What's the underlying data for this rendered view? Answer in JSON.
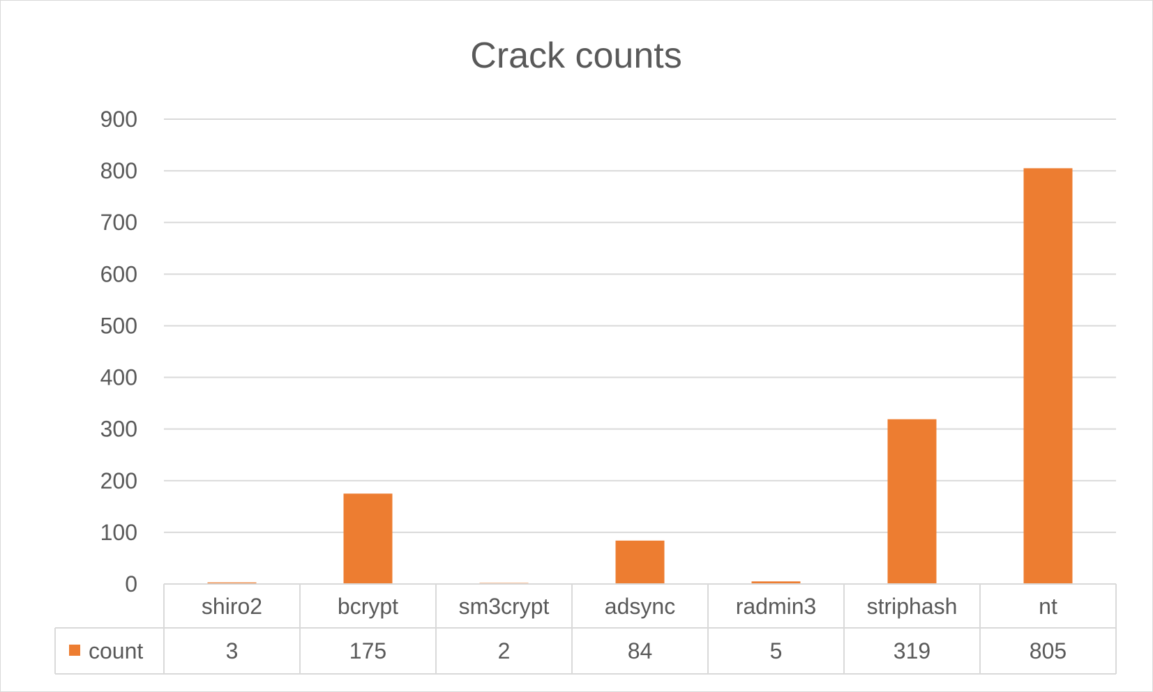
{
  "chart_data": {
    "type": "bar",
    "title": "Crack counts",
    "categories": [
      "shiro2",
      "bcrypt",
      "sm3crypt",
      "adsync",
      "radmin3",
      "striphash",
      "nt"
    ],
    "series": [
      {
        "name": "count",
        "values": [
          3,
          175,
          2,
          84,
          5,
          319,
          805
        ],
        "color": "#ed7d31"
      }
    ],
    "ylim": [
      0,
      900
    ],
    "yticks": [
      0,
      100,
      200,
      300,
      400,
      500,
      600,
      700,
      800,
      900
    ],
    "grid": true,
    "legend": "data-table",
    "data_table": true,
    "colors": {
      "gridline": "#d9d9d9",
      "text": "#595959",
      "bar": "#ed7d31"
    }
  }
}
